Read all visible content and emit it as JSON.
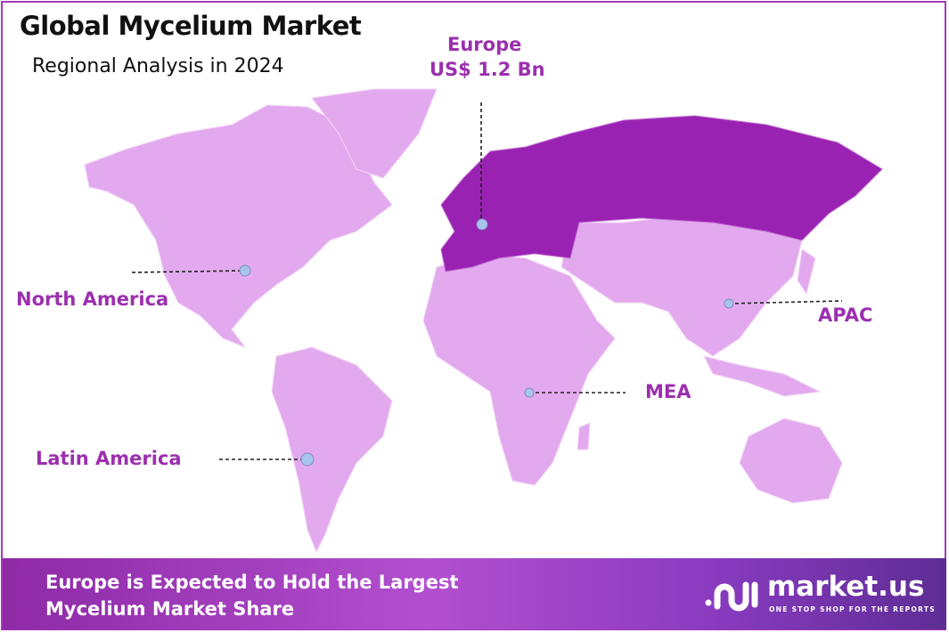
{
  "header": {
    "title": "Global Mycelium Market",
    "subtitle": "Regional Analysis in 2024"
  },
  "highlight": {
    "region": "Europe",
    "value": "US$ 1.2 Bn"
  },
  "regions": [
    "North America",
    "Latin America",
    "MEA",
    "APAC"
  ],
  "colors": {
    "base_region": "#e3a9ee",
    "highlighted_region": "#9a22b3",
    "label": "#9b2fae",
    "marker": "#a9c4ea"
  },
  "footer": {
    "line1": "Europe is Expected to Hold the Largest",
    "line2": "Mycelium Market Share"
  },
  "logo": {
    "name": "market.us",
    "tagline": "ONE STOP SHOP FOR THE REPORTS"
  }
}
